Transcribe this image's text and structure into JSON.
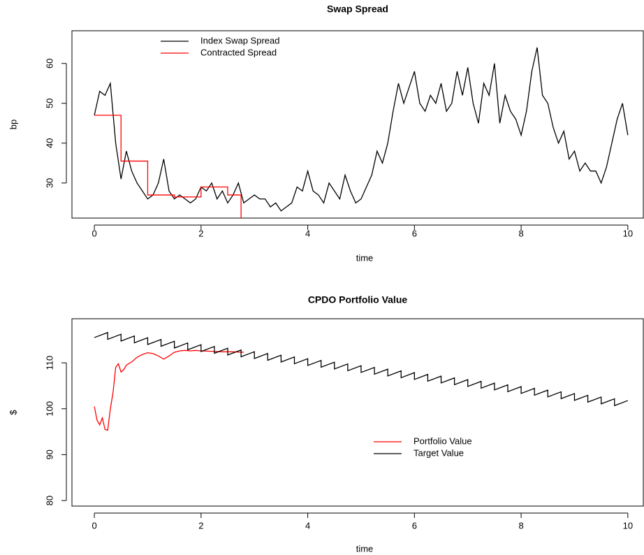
{
  "chart_data": [
    {
      "type": "line",
      "title": "Swap Spread",
      "x_label": "time",
      "y_label": "bp",
      "xlim": [
        -0.42,
        10.29
      ],
      "ylim": [
        21.2,
        68.2
      ],
      "xticks": [
        0,
        2,
        4,
        6,
        8,
        10
      ],
      "yticks": [
        30,
        40,
        50,
        60
      ],
      "legend": "top-left",
      "series": [
        {
          "name": "Index Swap Spread",
          "color": "#000000",
          "x": [
            0,
            0.1,
            0.2,
            0.3,
            0.4,
            0.5,
            0.6,
            0.7,
            0.8,
            0.9,
            1,
            1.1,
            1.2,
            1.3,
            1.4,
            1.5,
            1.6,
            1.7,
            1.8,
            1.9,
            2,
            2.1,
            2.2,
            2.3,
            2.4,
            2.5,
            2.6,
            2.7,
            2.8,
            2.9,
            3,
            3.1,
            3.2,
            3.3,
            3.4,
            3.5,
            3.6,
            3.7,
            3.8,
            3.9,
            4,
            4.1,
            4.2,
            4.3,
            4.4,
            4.5,
            4.6,
            4.7,
            4.8,
            4.9,
            5,
            5.1,
            5.2,
            5.3,
            5.4,
            5.5,
            5.6,
            5.7,
            5.8,
            5.9,
            6,
            6.1,
            6.2,
            6.3,
            6.4,
            6.5,
            6.6,
            6.7,
            6.8,
            6.9,
            7,
            7.1,
            7.2,
            7.3,
            7.4,
            7.5,
            7.6,
            7.7,
            7.8,
            7.9,
            8,
            8.1,
            8.2,
            8.3,
            8.4,
            8.5,
            8.6,
            8.7,
            8.8,
            8.9,
            9,
            9.1,
            9.2,
            9.3,
            9.4,
            9.5,
            9.6,
            9.7,
            9.8,
            9.9,
            10
          ],
          "values": [
            47,
            53,
            52,
            55,
            40,
            31,
            38,
            33,
            30,
            28,
            26,
            27,
            30,
            36,
            28,
            26,
            27,
            26,
            25,
            26,
            29,
            28,
            30,
            26,
            28,
            25,
            27,
            30,
            25,
            26,
            27,
            26,
            26,
            24,
            25,
            23,
            24,
            25,
            29,
            28,
            33,
            28,
            27,
            25,
            30,
            28,
            26,
            32,
            28,
            25,
            26,
            29,
            32,
            38,
            35,
            40,
            48,
            55,
            50,
            54,
            58,
            50,
            48,
            52,
            50,
            55,
            48,
            50,
            58,
            52,
            59,
            50,
            45,
            55,
            52,
            60,
            45,
            52,
            48,
            46,
            42,
            48,
            58,
            64,
            52,
            50,
            44,
            40,
            43,
            36,
            38,
            33,
            35,
            33,
            33,
            30,
            34,
            40,
            46,
            50,
            42
          ]
        },
        {
          "name": "Contracted Spread",
          "color": "#ff0000",
          "x": [
            0,
            0.5,
            0.5,
            1,
            1,
            1.5,
            1.5,
            2,
            2,
            2.5,
            2.5,
            2.75,
            2.75
          ],
          "values": [
            47,
            47,
            35.5,
            35.5,
            27,
            27,
            26.5,
            26.5,
            29,
            29,
            27,
            27,
            20
          ]
        }
      ]
    },
    {
      "type": "line",
      "title": "CPDO Portfolio Value",
      "x_label": "time",
      "y_label": "$",
      "xlim": [
        -0.42,
        10.29
      ],
      "ylim": [
        78.8,
        119.6
      ],
      "xticks": [
        0,
        2,
        4,
        6,
        8,
        10
      ],
      "yticks": [
        80,
        90,
        100,
        110
      ],
      "legend": "right",
      "series": [
        {
          "name": "Portfolio Value",
          "color": "#ff0000",
          "x": [
            0,
            0.05,
            0.1,
            0.15,
            0.2,
            0.25,
            0.3,
            0.35,
            0.4,
            0.45,
            0.5,
            0.55,
            0.6,
            0.7,
            0.8,
            0.9,
            1,
            1.1,
            1.2,
            1.3,
            1.4,
            1.5,
            1.6,
            1.7,
            1.8,
            1.9,
            2,
            2.2,
            2.4,
            2.6,
            2.8
          ],
          "values": [
            100.5,
            97.5,
            96.5,
            98,
            95.5,
            95.3,
            100,
            103.5,
            109,
            109.8,
            108,
            108.5,
            109.5,
            110.2,
            111.2,
            111.8,
            112.2,
            112,
            111.5,
            110.8,
            111.5,
            112.3,
            112.6,
            112.7,
            112.6,
            112.7,
            112.6,
            112.5,
            112.4,
            112.4,
            112.3
          ]
        },
        {
          "name": "Target Value",
          "color": "#000000",
          "x": [
            0,
            0.25,
            0.25,
            0.5,
            0.5,
            0.75,
            0.75,
            1,
            1,
            1.25,
            1.25,
            1.5,
            1.5,
            1.75,
            1.75,
            2,
            2,
            2.25,
            2.25,
            2.5,
            2.5,
            2.75,
            2.75,
            3,
            3,
            3.25,
            3.25,
            3.5,
            3.5,
            3.75,
            3.75,
            4,
            4,
            4.25,
            4.25,
            4.5,
            4.5,
            4.75,
            4.75,
            5,
            5,
            5.25,
            5.25,
            5.5,
            5.5,
            5.75,
            5.75,
            6,
            6,
            6.25,
            6.25,
            6.5,
            6.5,
            6.75,
            6.75,
            7,
            7,
            7.25,
            7.25,
            7.5,
            7.5,
            7.75,
            7.75,
            8,
            8,
            8.25,
            8.25,
            8.5,
            8.5,
            8.75,
            8.75,
            9,
            9,
            9.25,
            9.25,
            9.5,
            9.5,
            9.75,
            9.75,
            10
          ],
          "values": [
            115.5,
            116.6,
            115.12,
            116.22,
            114.74,
            115.84,
            114.36,
            115.46,
            113.98,
            115.08,
            113.6,
            114.7,
            113.22,
            114.32,
            112.84,
            113.94,
            112.46,
            113.56,
            112.08,
            113.18,
            111.7,
            112.8,
            111.32,
            112.42,
            110.94,
            112.04,
            110.56,
            111.66,
            110.18,
            111.28,
            109.8,
            110.9,
            109.42,
            110.52,
            109.04,
            110.14,
            108.66,
            109.76,
            108.28,
            109.38,
            107.9,
            109,
            107.52,
            108.62,
            107.14,
            108.24,
            106.76,
            107.86,
            106.38,
            107.48,
            106,
            107.1,
            105.62,
            106.72,
            105.24,
            106.34,
            104.86,
            105.96,
            104.48,
            105.58,
            104.1,
            105.2,
            103.72,
            104.82,
            103.34,
            104.44,
            102.96,
            104.06,
            102.58,
            103.68,
            102.2,
            103.3,
            101.82,
            102.92,
            101.44,
            102.54,
            101.06,
            102.16,
            100.68,
            101.78
          ]
        }
      ]
    }
  ]
}
